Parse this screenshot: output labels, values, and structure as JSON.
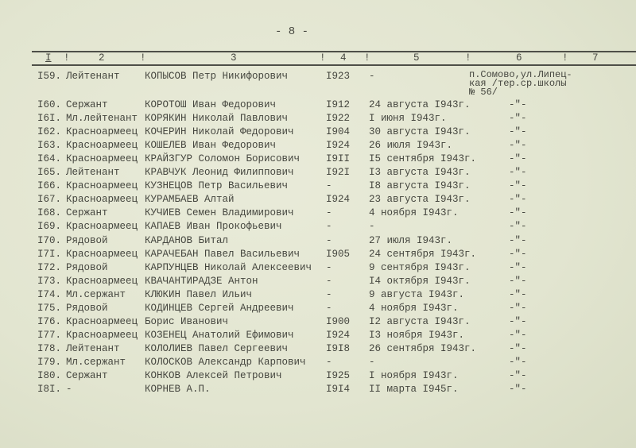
{
  "page_number": "- 8 -",
  "header_columns": [
    "I",
    "!",
    "2",
    "!",
    "3",
    "!",
    "4",
    "!",
    "5",
    "!",
    "6",
    "!",
    "7"
  ],
  "first_row": {
    "num": "I59.",
    "rank": "Лейтенант",
    "name": "КОПЫСОВ Петр Никифорович",
    "year": "I923",
    "date": "-",
    "address": "п.Сомово,ул.Липец-\nкая /тер.ср.школы\n№ 56/"
  },
  "rows": [
    {
      "num": "I60.",
      "rank": "Сержант",
      "name": "КОРОТОШ Иван Федорович",
      "year": "I912",
      "date": "24 августа I943г.",
      "ditto": "-\"-"
    },
    {
      "num": "I6I.",
      "rank": "Мл.лейтенант",
      "name": "КОРЯКИН Николай Павлович",
      "year": "I922",
      "date": "I июня I943г.",
      "ditto": "-\"-"
    },
    {
      "num": "I62.",
      "rank": "Красноармеец",
      "name": "КОЧЕРИН Николай Федорович",
      "year": "I904",
      "date": "30 августа I943г.",
      "ditto": "-\"-"
    },
    {
      "num": "I63.",
      "rank": "Красноармеец",
      "name": "КОШЕЛЕВ Иван Федорович",
      "year": "I924",
      "date": "26 июля I943г.",
      "ditto": "-\"-"
    },
    {
      "num": "I64.",
      "rank": "Красноармеец",
      "name": "КРАЙЗГУР Соломон Борисович",
      "year": "I9II",
      "date": "I5 сентября I943г.",
      "ditto": "-\"-"
    },
    {
      "num": "I65.",
      "rank": "Лейтенант",
      "name": "КРАВЧУК Леонид Филиппович",
      "year": "I92I",
      "date": "I3 августа I943г.",
      "ditto": "-\"-"
    },
    {
      "num": "I66.",
      "rank": "Красноармеец",
      "name": "КУЗНЕЦОВ Петр Васильевич",
      "year": "-",
      "date": "I8 августа I943г.",
      "ditto": "-\"-"
    },
    {
      "num": "I67.",
      "rank": "Красноармеец",
      "name": "КУРАМБАЕВ Алтай",
      "year": "I924",
      "date": "23 августа I943г.",
      "ditto": "-\"-"
    },
    {
      "num": "I68.",
      "rank": "Сержант",
      "name": "КУЧИЕВ Семен Владимирович",
      "year": "-",
      "date": "4 ноября I943г.",
      "ditto": "-\"-"
    },
    {
      "num": "I69.",
      "rank": "Красноармеец",
      "name": "КАПАЕВ Иван Прокофьевич",
      "year": "-",
      "date": "-",
      "ditto": "-\"-"
    },
    {
      "num": "I70.",
      "rank": "Рядовой",
      "name": "КАРДАНОВ Битал",
      "year": "-",
      "date": "27 июля I943г.",
      "ditto": "-\"-"
    },
    {
      "num": "I7I.",
      "rank": "Красноармеец",
      "name": "КАРАЧЕБАН Павел Васильевич",
      "year": "I905",
      "date": "24 сентября I943г.",
      "ditto": "-\"-"
    },
    {
      "num": "I72.",
      "rank": "Рядовой",
      "name": "КАРПУНЦЕВ Николай Алексеевич",
      "year": "-",
      "date": "9 сентября I943г.",
      "ditto": "-\"-"
    },
    {
      "num": "I73.",
      "rank": "Красноармеец",
      "name": "КВАЧАНТИРАДЗЕ Антон",
      "year": "-",
      "date": "I4 октября I943г.",
      "ditto": "-\"-"
    },
    {
      "num": "I74.",
      "rank": "Мл.сержант",
      "name": "КЛЮКИН Павел Ильич",
      "year": "-",
      "date": "9 августа I943г.",
      "ditto": "-\"-"
    },
    {
      "num": "I75.",
      "rank": "Рядовой",
      "name": "КОДИНЦЕВ Сергей Андреевич",
      "year": "-",
      "date": "4 ноября I943г.",
      "ditto": "-\"-"
    },
    {
      "num": "I76.",
      "rank": "Красноармеец",
      "name": "Борис Иванович",
      "year": "I900",
      "date": "I2 августа I943г.",
      "ditto": "-\"-"
    },
    {
      "num": "I77.",
      "rank": "Красноармеец",
      "name": "КОЗЕНЕЦ Анатолий Ефимович",
      "year": "I924",
      "date": "I3 ноября I943г.",
      "ditto": "-\"-"
    },
    {
      "num": "I78.",
      "rank": "Лейтенант",
      "name": "КОЛОЛИЕВ Павел Сергеевич",
      "year": "I9I8",
      "date": "26 сентября I943г.",
      "ditto": "-\"-"
    },
    {
      "num": "I79.",
      "rank": "Мл.сержант",
      "name": "КОЛОСКОВ Александр Карпович",
      "year": "-",
      "date": "-",
      "ditto": "-\"-"
    },
    {
      "num": "I80.",
      "rank": "Сержант",
      "name": "КОНКОВ Алексей Петрович",
      "year": "I925",
      "date": "I ноября I943г.",
      "ditto": "-\"-"
    },
    {
      "num": "I8I.",
      "rank": "-",
      "name": "КОРНЕВ А.П.",
      "year": "I9I4",
      "date": "II марта I945г.",
      "ditto": "-\"-"
    }
  ]
}
